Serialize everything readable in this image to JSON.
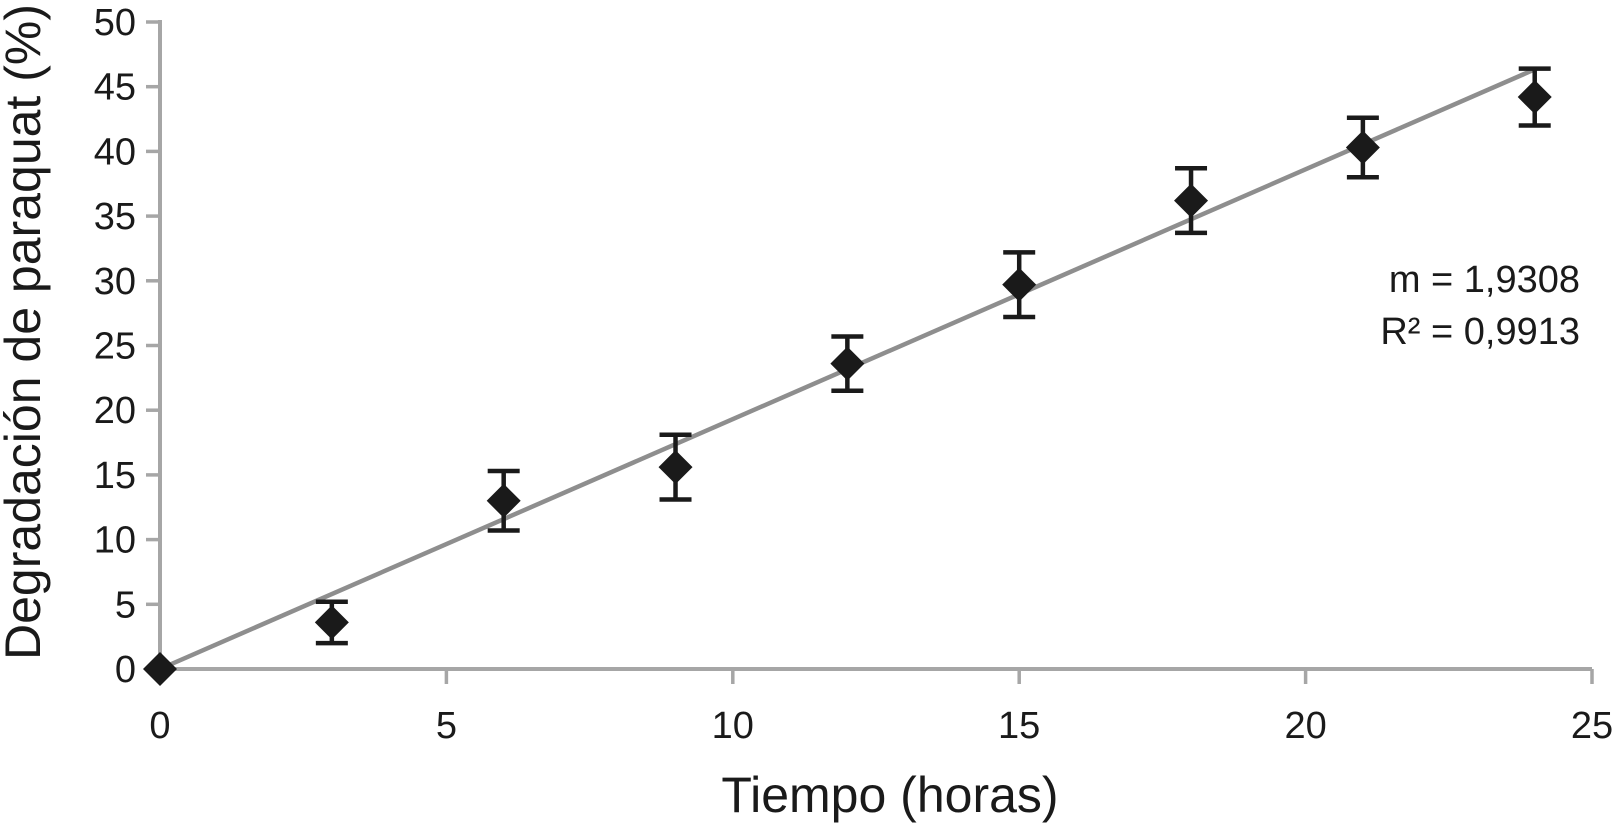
{
  "chart_data": {
    "type": "scatter",
    "title": "",
    "xlabel": "Tiempo (horas)",
    "ylabel": "Degradación de paraquat (%)",
    "xlim": [
      0,
      25
    ],
    "ylim": [
      0,
      50
    ],
    "xticks": [
      0,
      5,
      10,
      15,
      20,
      25
    ],
    "yticks": [
      0,
      5,
      10,
      15,
      20,
      25,
      30,
      35,
      40,
      45,
      50
    ],
    "grid": false,
    "marker": "diamond",
    "points": [
      {
        "x": 0,
        "y": 0,
        "err": 0
      },
      {
        "x": 3,
        "y": 3.6,
        "err": 1.6
      },
      {
        "x": 6,
        "y": 13.0,
        "err": 2.3
      },
      {
        "x": 9,
        "y": 15.6,
        "err": 2.5
      },
      {
        "x": 12,
        "y": 23.6,
        "err": 2.1
      },
      {
        "x": 15,
        "y": 29.7,
        "err": 2.5
      },
      {
        "x": 18,
        "y": 36.2,
        "err": 2.5
      },
      {
        "x": 21,
        "y": 40.3,
        "err": 2.3
      },
      {
        "x": 24,
        "y": 44.2,
        "err": 2.2
      }
    ],
    "trendline": {
      "slope": 1.9308,
      "intercept": 0,
      "x_range": [
        0,
        24
      ]
    },
    "annotations": [
      "m = 1,9308",
      "R² = 0,9913"
    ],
    "colors": {
      "marker": "#1a1a1a",
      "trendline": "#8e8e8e",
      "axis": "#a6a6a6",
      "text": "#1a1a1a"
    }
  }
}
